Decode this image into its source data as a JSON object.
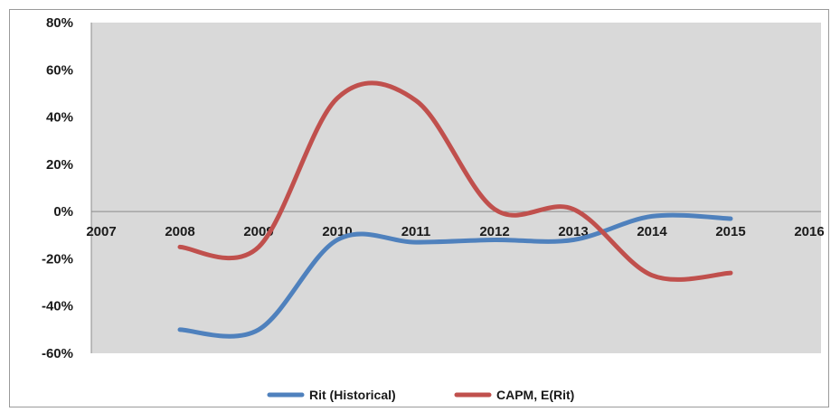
{
  "chart_data": {
    "type": "line",
    "title": "",
    "xlabel": "",
    "ylabel": "",
    "x_ticks": [
      2007,
      2008,
      2009,
      2010,
      2011,
      2012,
      2013,
      2014,
      2015,
      2016
    ],
    "xlim": [
      2007,
      2016
    ],
    "ylim": [
      -60,
      80
    ],
    "y_ticks": [
      80,
      60,
      40,
      20,
      0,
      -20,
      -40,
      -60
    ],
    "y_tick_labels": [
      "80%",
      "60%",
      "40%",
      "20%",
      "0%",
      "-20%",
      "-40%",
      "-60%"
    ],
    "grid": false,
    "plot_background": "#d9d9d9",
    "legend_position": "bottom",
    "smooth": true,
    "series": [
      {
        "name": "Rit (Historical)",
        "color": "#4f81bd",
        "x": [
          2008,
          2009,
          2010,
          2011,
          2012,
          2013,
          2014,
          2015
        ],
        "y": [
          -50,
          -50,
          -12,
          -13,
          -12,
          -12,
          -2,
          -3
        ]
      },
      {
        "name": "CAPM, E(Rit)",
        "color": "#c0504d",
        "x": [
          2008,
          2009,
          2010,
          2011,
          2012,
          2013,
          2014,
          2015
        ],
        "y": [
          -15,
          -15,
          48,
          47,
          1,
          1,
          -27,
          -26
        ]
      }
    ]
  }
}
